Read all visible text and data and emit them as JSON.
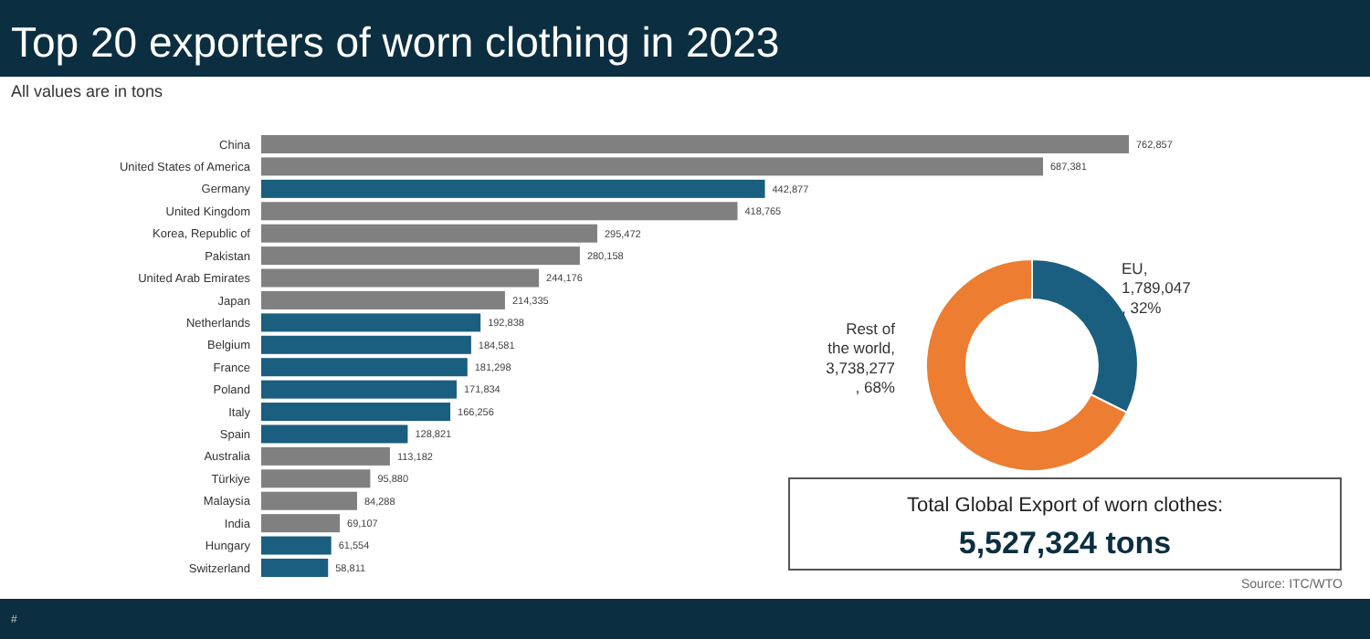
{
  "chart_data": [
    {
      "type": "bar",
      "orientation": "horizontal",
      "title": "Top 20 exporters of worn clothing in 2023",
      "subtitle": "All values are in tons",
      "value_labels": [
        "762,857",
        "687,381",
        "442,877",
        "418,765",
        "295,472",
        "280,158",
        "244,176",
        "214,335",
        "192,838",
        "184,581",
        "181,298",
        "171,834",
        "166,256",
        "128,821",
        "113,182",
        "95,880",
        "84,288",
        "69,107",
        "61,554",
        "58,811"
      ],
      "categories": [
        "China",
        "United States of America",
        "Germany",
        "United Kingdom",
        "Korea, Republic of",
        "Pakistan",
        "United Arab Emirates",
        "Japan",
        "Netherlands",
        "Belgium",
        "France",
        "Poland",
        "Italy",
        "Spain",
        "Australia",
        "Türkiye",
        "Malaysia",
        "India",
        "Hungary",
        "Switzerland"
      ],
      "values": [
        762857,
        687381,
        442877,
        418765,
        295472,
        280158,
        244176,
        214335,
        192838,
        184581,
        181298,
        171834,
        166256,
        128821,
        113182,
        95880,
        84288,
        69107,
        61554,
        58811
      ],
      "colors": [
        "#808080",
        "#808080",
        "#1a5e80",
        "#808080",
        "#808080",
        "#808080",
        "#808080",
        "#808080",
        "#1a5e80",
        "#1a5e80",
        "#1a5e80",
        "#1a5e80",
        "#1a5e80",
        "#1a5e80",
        "#808080",
        "#808080",
        "#808080",
        "#808080",
        "#1a5e80",
        "#1a5e80"
      ],
      "annotations": [
        "Source: ITC/WTO",
        "#"
      ]
    },
    {
      "type": "donut",
      "categories": [
        "EU",
        "Rest of the world"
      ],
      "values": [
        1789047,
        3738277
      ],
      "colors": [
        "#1a5e80",
        "#ed7d31"
      ],
      "value_labels": [
        ",\n1,789,047\n, 32%",
        ",\n3,738,277\n, 68%"
      ]
    },
    {
      "type": "other",
      "title": "Total Global Export of worn clothes:",
      "subtitle": "5,527,324 tons"
    }
  ]
}
